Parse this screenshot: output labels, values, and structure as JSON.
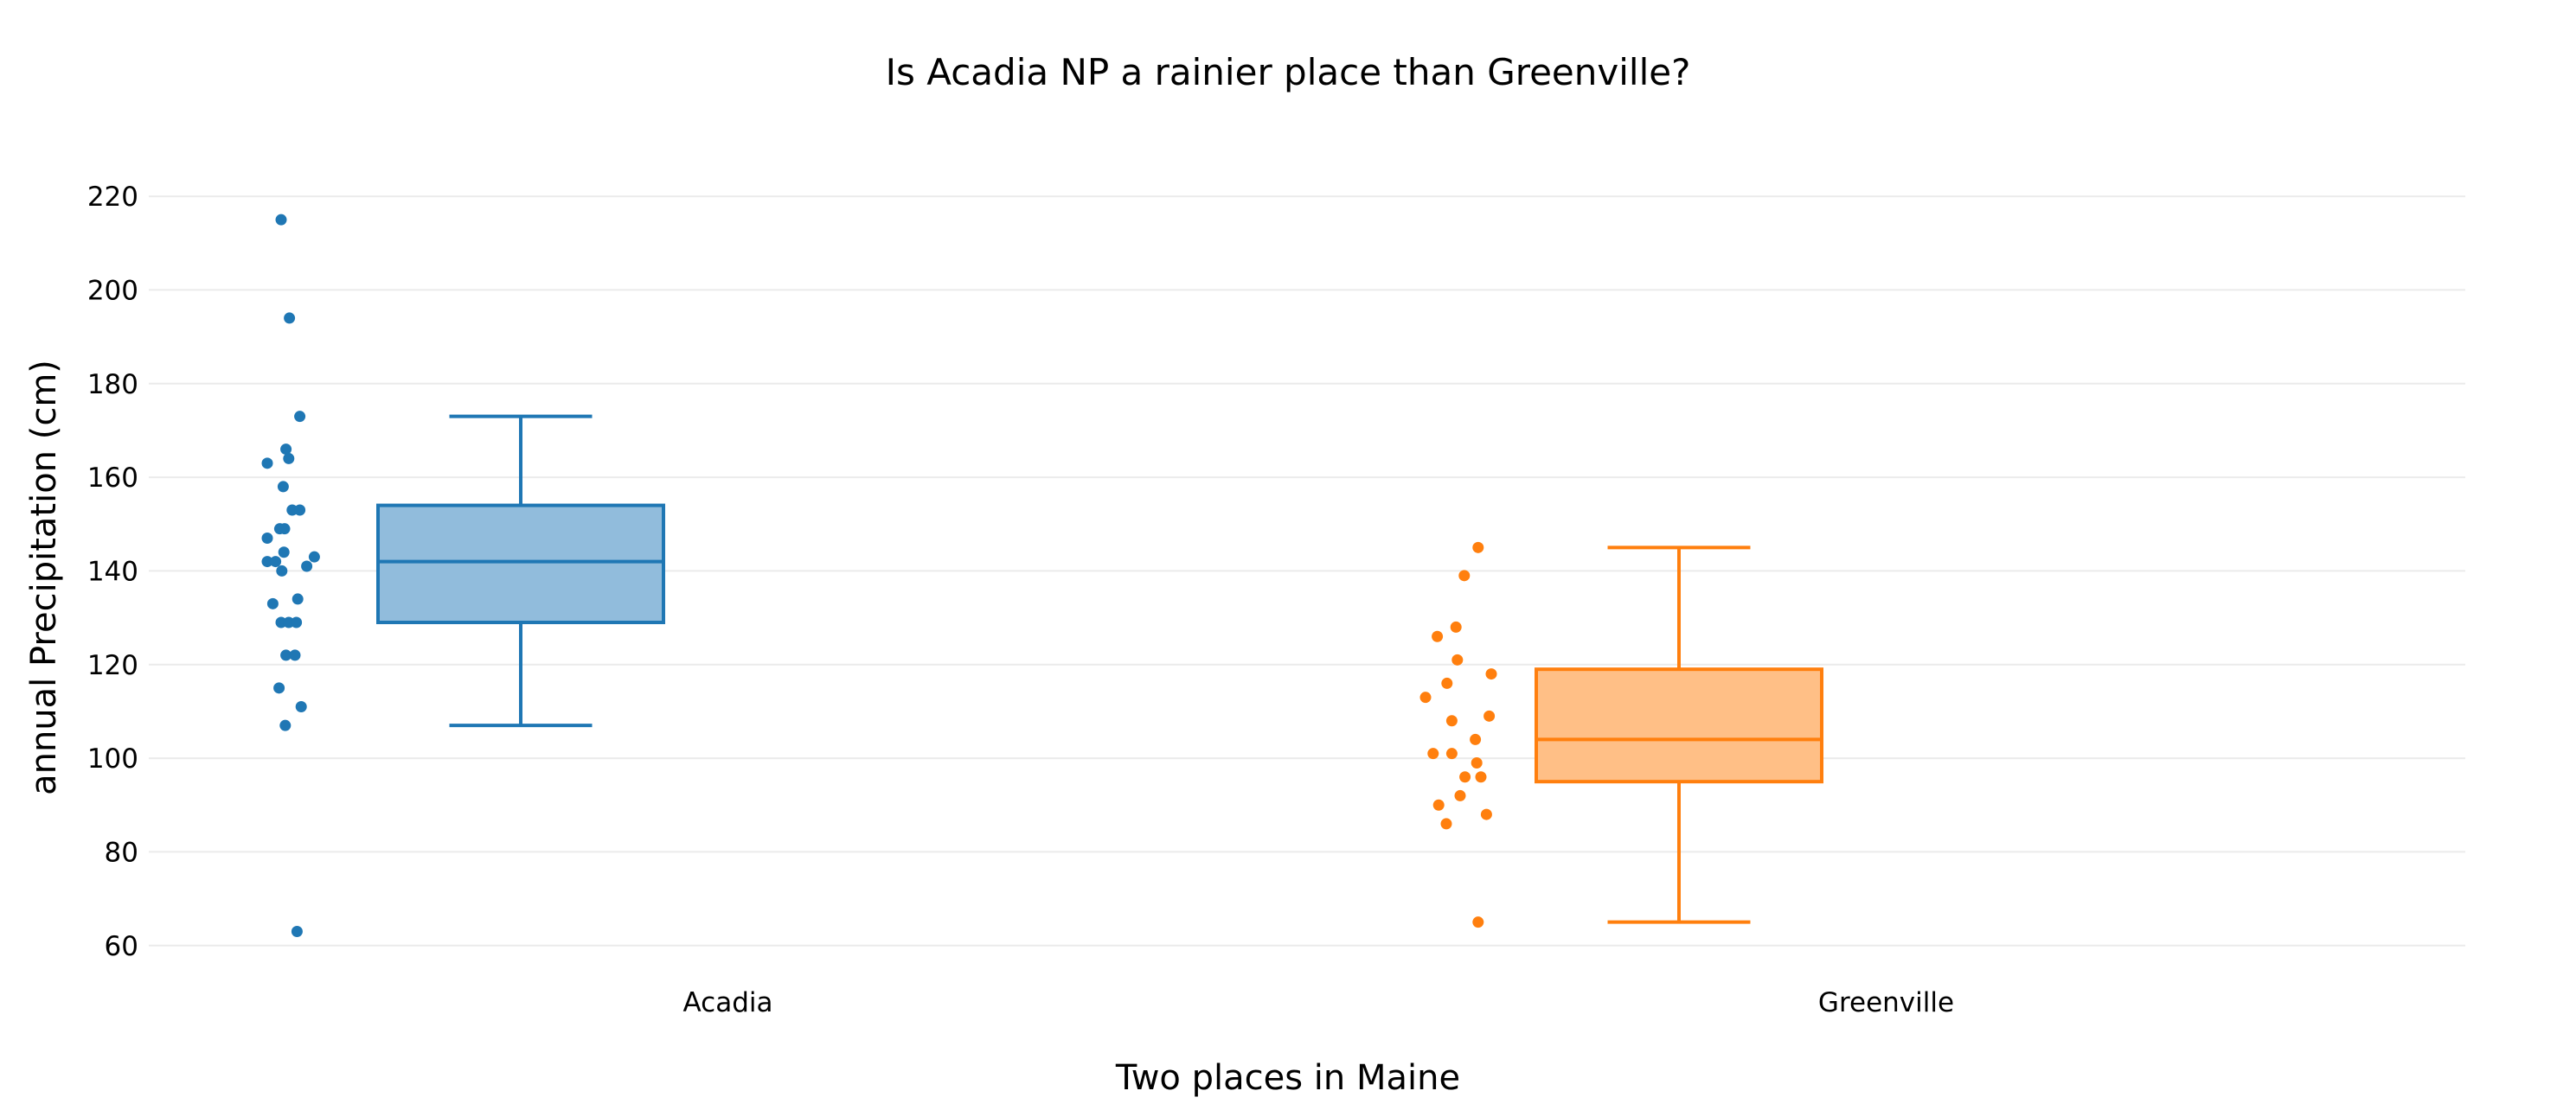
{
  "chart_data": {
    "type": "box",
    "title": "Is Acadia NP a rainier place than Greenville?",
    "xlabel": "Two places in Maine",
    "ylabel": "annual Precipitation (cm)",
    "categories": [
      "Acadia",
      "Greenville"
    ],
    "yticks": [
      60,
      80,
      100,
      120,
      140,
      160,
      180,
      200,
      220
    ],
    "ylim": [
      57,
      225
    ],
    "grid": true,
    "legend": "none",
    "series": [
      {
        "category": "Acadia",
        "color": "#1f77b4",
        "fill": "#91bcdc",
        "stats": {
          "lower_whisker": 107,
          "q1": 129,
          "median": 142,
          "q3": 154,
          "upper_whisker": 173
        },
        "points": [
          215,
          194,
          173,
          166,
          164,
          163,
          158,
          153,
          153,
          149,
          149,
          147,
          144,
          143,
          142,
          142,
          141,
          140,
          134,
          133,
          129,
          129,
          129,
          122,
          122,
          115,
          111,
          107,
          63
        ],
        "jitter": [
          0.2,
          0.32,
          0.47,
          0.27,
          0.31,
          0.0,
          0.23,
          0.36,
          0.47,
          0.18,
          0.25,
          0.0,
          0.24,
          0.68,
          0.0,
          0.12,
          0.57,
          0.21,
          0.44,
          0.08,
          0.2,
          0.31,
          0.42,
          0.27,
          0.4,
          0.17,
          0.49,
          0.26,
          0.43
        ]
      },
      {
        "category": "Greenville",
        "color": "#ff7f0e",
        "fill": "#ffbf86",
        "stats": {
          "lower_whisker": 65,
          "q1": 95,
          "median": 104,
          "q3": 119,
          "upper_whisker": 145
        },
        "points": [
          145,
          139,
          128,
          126,
          121,
          118,
          116,
          113,
          109,
          108,
          104,
          101,
          101,
          99,
          96,
          96,
          92,
          90,
          88,
          86,
          65
        ],
        "jitter": [
          0.76,
          0.56,
          0.44,
          0.17,
          0.46,
          0.95,
          0.31,
          0.0,
          0.92,
          0.38,
          0.72,
          0.11,
          0.38,
          0.74,
          0.57,
          0.8,
          0.5,
          0.19,
          0.88,
          0.3,
          0.76
        ]
      }
    ]
  }
}
